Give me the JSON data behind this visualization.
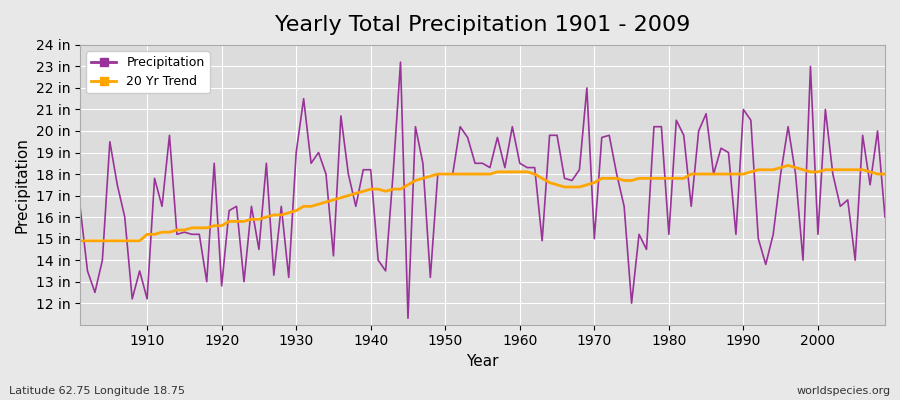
{
  "title": "Yearly Total Precipitation 1901 - 2009",
  "xlabel": "Year",
  "ylabel": "Precipitation",
  "years": [
    1901,
    1902,
    1903,
    1904,
    1905,
    1906,
    1907,
    1908,
    1909,
    1910,
    1911,
    1912,
    1913,
    1914,
    1915,
    1916,
    1917,
    1918,
    1919,
    1920,
    1921,
    1922,
    1923,
    1924,
    1925,
    1926,
    1927,
    1928,
    1929,
    1930,
    1931,
    1932,
    1933,
    1934,
    1935,
    1936,
    1937,
    1938,
    1939,
    1940,
    1941,
    1942,
    1943,
    1944,
    1945,
    1946,
    1947,
    1948,
    1949,
    1950,
    1951,
    1952,
    1953,
    1954,
    1955,
    1956,
    1957,
    1958,
    1959,
    1960,
    1961,
    1962,
    1963,
    1964,
    1965,
    1966,
    1967,
    1968,
    1969,
    1970,
    1971,
    1972,
    1973,
    1974,
    1975,
    1976,
    1977,
    1978,
    1979,
    1980,
    1981,
    1982,
    1983,
    1984,
    1985,
    1986,
    1987,
    1988,
    1989,
    1990,
    1991,
    1992,
    1993,
    1994,
    1995,
    1996,
    1997,
    1998,
    1999,
    2000,
    2001,
    2002,
    2003,
    2004,
    2005,
    2006,
    2007,
    2008,
    2009
  ],
  "precip": [
    16.5,
    13.5,
    12.5,
    14.0,
    19.5,
    17.5,
    16.0,
    12.2,
    13.5,
    12.2,
    17.8,
    16.5,
    19.8,
    15.2,
    15.3,
    15.2,
    15.2,
    13.0,
    18.5,
    12.8,
    16.3,
    16.5,
    13.0,
    16.5,
    14.5,
    18.5,
    13.3,
    16.5,
    13.2,
    19.0,
    21.5,
    18.5,
    19.0,
    18.0,
    14.2,
    20.7,
    18.0,
    16.5,
    18.2,
    18.2,
    14.0,
    13.5,
    18.0,
    23.2,
    11.3,
    20.2,
    18.5,
    13.2,
    18.0,
    18.0,
    18.0,
    20.2,
    19.7,
    18.5,
    18.5,
    18.3,
    19.7,
    18.3,
    20.2,
    18.5,
    18.3,
    18.3,
    14.9,
    19.8,
    19.8,
    17.8,
    17.7,
    18.2,
    22.0,
    15.0,
    19.7,
    19.8,
    18.0,
    16.5,
    12.0,
    15.2,
    14.5,
    20.2,
    20.2,
    15.2,
    20.5,
    19.8,
    16.5,
    20.0,
    20.8,
    18.0,
    19.2,
    19.0,
    15.2,
    21.0,
    20.5,
    15.0,
    13.8,
    15.2,
    18.0,
    20.2,
    18.0,
    14.0,
    23.0,
    15.2,
    21.0,
    18.0,
    16.5,
    16.8,
    14.0,
    19.8,
    17.5,
    20.0,
    16.0
  ],
  "trend": [
    14.9,
    14.9,
    14.9,
    14.9,
    14.9,
    14.9,
    14.9,
    14.9,
    14.9,
    15.2,
    15.2,
    15.3,
    15.3,
    15.4,
    15.4,
    15.5,
    15.5,
    15.5,
    15.6,
    15.6,
    15.8,
    15.8,
    15.8,
    15.9,
    15.9,
    16.0,
    16.1,
    16.1,
    16.2,
    16.3,
    16.5,
    16.5,
    16.6,
    16.7,
    16.8,
    16.9,
    17.0,
    17.1,
    17.2,
    17.3,
    17.3,
    17.2,
    17.3,
    17.3,
    17.5,
    17.7,
    17.8,
    17.9,
    18.0,
    18.0,
    18.0,
    18.0,
    18.0,
    18.0,
    18.0,
    18.0,
    18.1,
    18.1,
    18.1,
    18.1,
    18.1,
    18.0,
    17.8,
    17.6,
    17.5,
    17.4,
    17.4,
    17.4,
    17.5,
    17.6,
    17.8,
    17.8,
    17.8,
    17.7,
    17.7,
    17.8,
    17.8,
    17.8,
    17.8,
    17.8,
    17.8,
    17.8,
    18.0,
    18.0,
    18.0,
    18.0,
    18.0,
    18.0,
    18.0,
    18.0,
    18.1,
    18.2,
    18.2,
    18.2,
    18.3,
    18.4,
    18.3,
    18.2,
    18.1,
    18.1,
    18.2,
    18.2,
    18.2,
    18.2,
    18.2,
    18.2,
    18.1,
    18.0,
    18.0
  ],
  "precip_color": "#993399",
  "trend_color": "#FFA500",
  "bg_color": "#e8e8e8",
  "plot_bg_color": "#dcdcdc",
  "grid_color": "#ffffff",
  "ylim_min": 11,
  "ylim_max": 24,
  "ytick_step": 1,
  "xtick_values": [
    1910,
    1920,
    1930,
    1940,
    1950,
    1960,
    1970,
    1980,
    1990,
    2000
  ],
  "bottom_left_text": "Latitude 62.75 Longitude 18.75",
  "bottom_right_text": "worldspecies.org",
  "legend_labels": [
    "Precipitation",
    "20 Yr Trend"
  ],
  "title_fontsize": 16,
  "axis_label_fontsize": 11,
  "tick_label_fontsize": 10,
  "small_text_fontsize": 8
}
